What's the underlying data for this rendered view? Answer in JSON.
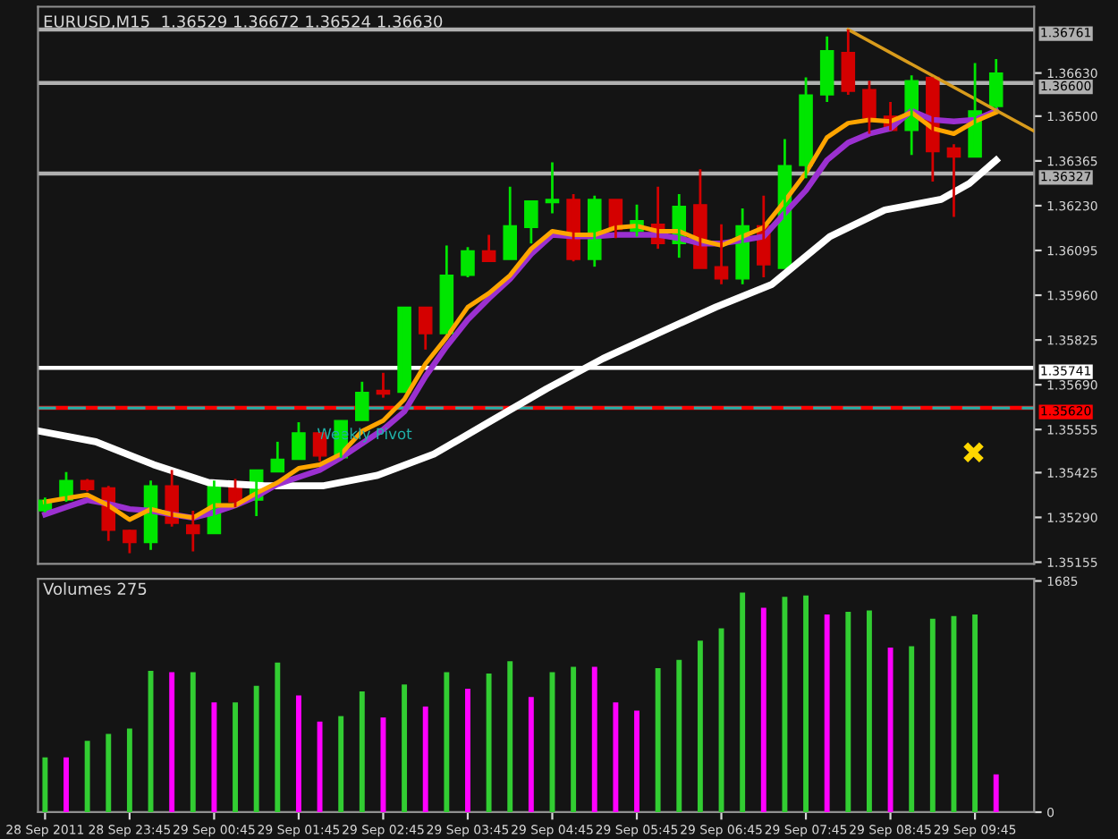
{
  "chart_data": [
    {
      "type": "candlestick",
      "title": "EURUSD,M15  1.36529 1.36672 1.36524 1.36630",
      "x": [
        "2011-09-28T22:45",
        "2011-09-28T23:00",
        "2011-09-28T23:15",
        "2011-09-28T23:30",
        "2011-09-28T23:45",
        "2011-09-29T00:00",
        "2011-09-29T00:15",
        "2011-09-29T00:30",
        "2011-09-29T00:45",
        "2011-09-29T01:00",
        "2011-09-29T01:15",
        "2011-09-29T01:30",
        "2011-09-29T01:45",
        "2011-09-29T02:00",
        "2011-09-29T02:15",
        "2011-09-29T02:30",
        "2011-09-29T02:45",
        "2011-09-29T03:00",
        "2011-09-29T03:15",
        "2011-09-29T03:30",
        "2011-09-29T03:45",
        "2011-09-29T04:00",
        "2011-09-29T04:15",
        "2011-09-29T04:30",
        "2011-09-29T04:45",
        "2011-09-29T05:00",
        "2011-09-29T05:15",
        "2011-09-29T05:30",
        "2011-09-29T05:45",
        "2011-09-29T06:00",
        "2011-09-29T06:15",
        "2011-09-29T06:30",
        "2011-09-29T06:45",
        "2011-09-29T07:00",
        "2011-09-29T07:15",
        "2011-09-29T07:30",
        "2011-09-29T07:45",
        "2011-09-29T08:00",
        "2011-09-29T08:15",
        "2011-09-29T08:30",
        "2011-09-29T08:45",
        "2011-09-29T09:00",
        "2011-09-29T09:15",
        "2011-09-29T09:30",
        "2011-09-29T09:45",
        "2011-09-29T10:00"
      ],
      "ohlc": [
        [
          1.3531,
          1.3535,
          1.35305,
          1.35342
        ],
        [
          1.35342,
          1.35427,
          1.35337,
          1.35401
        ],
        [
          1.35401,
          1.35406,
          1.35368,
          1.35374
        ],
        [
          1.35379,
          1.35385,
          1.35219,
          1.35251
        ],
        [
          1.35251,
          1.35253,
          1.35182,
          1.35214
        ],
        [
          1.35214,
          1.35401,
          1.35192,
          1.35385
        ],
        [
          1.35385,
          1.35433,
          1.35262,
          1.35272
        ],
        [
          1.35267,
          1.3531,
          1.35187,
          1.35241
        ],
        [
          1.35241,
          1.35401,
          1.35241,
          1.35385
        ],
        [
          1.3539,
          1.35406,
          1.35321,
          1.35337
        ],
        [
          1.35342,
          1.35433,
          1.35294,
          1.35433
        ],
        [
          1.35427,
          1.35518,
          1.35427,
          1.35465
        ],
        [
          1.35465,
          1.35577,
          1.35465,
          1.35545
        ],
        [
          1.35545,
          1.35545,
          1.35459,
          1.35475
        ],
        [
          1.3547,
          1.35582,
          1.3547,
          1.35582
        ],
        [
          1.35582,
          1.35699,
          1.35582,
          1.35667
        ],
        [
          1.35673,
          1.35726,
          1.35651,
          1.35662
        ],
        [
          1.35667,
          1.35924,
          1.35667,
          1.35924
        ],
        [
          1.35924,
          1.35924,
          1.35796,
          1.35844
        ],
        [
          1.35844,
          1.3611,
          1.35844,
          1.3602
        ],
        [
          1.3602,
          1.36105,
          1.36014,
          1.36094
        ],
        [
          1.36094,
          1.36142,
          1.36062,
          1.36062
        ],
        [
          1.36068,
          1.36287,
          1.36068,
          1.36169
        ],
        [
          1.36164,
          1.36244,
          1.36116,
          1.36244
        ],
        [
          1.36239,
          1.36361,
          1.36207,
          1.36249
        ],
        [
          1.36249,
          1.36265,
          1.36062,
          1.36068
        ],
        [
          1.36068,
          1.3626,
          1.36046,
          1.36249
        ],
        [
          1.36249,
          1.36249,
          1.36132,
          1.36158
        ],
        [
          1.36153,
          1.36233,
          1.36137,
          1.36185
        ],
        [
          1.36174,
          1.36287,
          1.361,
          1.36116
        ],
        [
          1.36116,
          1.36265,
          1.36073,
          1.36228
        ],
        [
          1.36233,
          1.3634,
          1.36041,
          1.36041
        ],
        [
          1.36046,
          1.36174,
          1.35993,
          1.36009
        ],
        [
          1.36009,
          1.36222,
          1.35993,
          1.36169
        ],
        [
          1.36169,
          1.3626,
          1.36014,
          1.36052
        ],
        [
          1.36041,
          1.36431,
          1.36041,
          1.36351
        ],
        [
          1.36351,
          1.36617,
          1.36313,
          1.36564
        ],
        [
          1.36564,
          1.3674,
          1.36543,
          1.36697
        ],
        [
          1.36692,
          1.36761,
          1.36564,
          1.36575
        ],
        [
          1.3658,
          1.36607,
          1.36447,
          1.36495
        ],
        [
          1.365,
          1.36543,
          1.36457,
          1.36457
        ],
        [
          1.36457,
          1.36623,
          1.36383,
          1.36607
        ],
        [
          1.36617,
          1.36617,
          1.36303,
          1.36393
        ],
        [
          1.36404,
          1.36415,
          1.36196,
          1.36377
        ],
        [
          1.36377,
          1.3666,
          1.36377,
          1.36516
        ],
        [
          1.36529,
          1.36672,
          1.36524,
          1.3663
        ]
      ],
      "colors": [
        "#00e600",
        "#00e600",
        "#d40000",
        "#d40000",
        "#d40000",
        "#00e600",
        "#d40000",
        "#d40000",
        "#00e600",
        "#d40000",
        "#00e600",
        "#00e600",
        "#00e600",
        "#d40000",
        "#00e600",
        "#00e600",
        "#d40000",
        "#00e600",
        "#d40000",
        "#00e600",
        "#00e600",
        "#d40000",
        "#00e600",
        "#00e600",
        "#00e600",
        "#d40000",
        "#00e600",
        "#d40000",
        "#00e600",
        "#d40000",
        "#00e600",
        "#d40000",
        "#d40000",
        "#00e600",
        "#d40000",
        "#00e600",
        "#00e600",
        "#00e600",
        "#d40000",
        "#d40000",
        "#d40000",
        "#00e600",
        "#d40000",
        "#d40000",
        "#00e600",
        "#00e600"
      ],
      "series": [
        {
          "type": "line",
          "color": "#ffffff",
          "x": [
            "2011-09-28T22:41",
            "2011-09-28T23:21",
            "2011-09-29T00:02",
            "2011-09-29T00:41",
            "2011-09-29T01:21",
            "2011-09-29T02:02",
            "2011-09-29T02:41",
            "2011-09-29T03:21",
            "2011-09-29T04:02",
            "2011-09-29T04:41",
            "2011-09-29T05:21",
            "2011-09-29T06:02",
            "2011-09-29T06:41",
            "2011-09-29T07:21",
            "2011-09-29T08:02",
            "2011-09-29T08:41",
            "2011-09-29T09:21",
            "2011-09-29T09:41",
            "2011-09-29T10:00"
          ],
          "values": [
            1.3555,
            1.35518,
            1.35449,
            1.35395,
            1.35385,
            1.35385,
            1.35417,
            1.35481,
            1.35582,
            1.35678,
            1.35769,
            1.35849,
            1.35924,
            1.35993,
            1.36137,
            1.36217,
            1.36249,
            1.36297,
            1.36367
          ]
        },
        {
          "type": "line",
          "color": "#9b30d0",
          "values": [
            1.35299,
            1.35321,
            1.35342,
            1.35331,
            1.35315,
            1.3531,
            1.35299,
            1.35289,
            1.35305,
            1.35326,
            1.35353,
            1.3539,
            1.35411,
            1.35433,
            1.3547,
            1.35513,
            1.35555,
            1.35609,
            1.35715,
            1.35806,
            1.35886,
            1.3595,
            1.36009,
            1.36084,
            1.36142,
            1.36137,
            1.36137,
            1.36142,
            1.36142,
            1.36142,
            1.36132,
            1.36116,
            1.36116,
            1.36126,
            1.36137,
            1.36207,
            1.36276,
            1.36367,
            1.3642,
            1.36447,
            1.36463,
            1.36516,
            1.36489,
            1.36484,
            1.36489,
            1.36516
          ]
        },
        {
          "type": "line",
          "color": "#ffa500",
          "values": [
            1.35337,
            1.35348,
            1.35358,
            1.35326,
            1.35283,
            1.35315,
            1.35299,
            1.35289,
            1.35326,
            1.35326,
            1.35363,
            1.35395,
            1.35438,
            1.35449,
            1.35481,
            1.3555,
            1.35582,
            1.35646,
            1.35753,
            1.35833,
            1.35924,
            1.35966,
            1.3602,
            1.361,
            1.36153,
            1.36142,
            1.36142,
            1.36164,
            1.36169,
            1.36153,
            1.36153,
            1.36126,
            1.3611,
            1.36137,
            1.36164,
            1.36244,
            1.36329,
            1.36436,
            1.36479,
            1.36489,
            1.36484,
            1.36511,
            1.36463,
            1.36447,
            1.36484,
            1.36511
          ]
        },
        {
          "type": "line",
          "color": "#d89b1c",
          "x": [
            "2011-09-29T08:15",
            "2011-09-29T10:27"
          ],
          "values": [
            1.36761,
            1.36455
          ]
        },
        {
          "type": "scatter",
          "color": "#ffd700",
          "marker": "cross",
          "x": [
            "2011-09-29T09:44"
          ],
          "values": [
            1.35486
          ]
        }
      ],
      "ref_lines": [
        {
          "axis": "y",
          "value": 1.36761,
          "label": "1.36761",
          "color": "#b0b0b0",
          "line_style": "solid"
        },
        {
          "axis": "y",
          "value": 1.366,
          "label": "1.36600",
          "color": "#b0b0b0",
          "line_style": "solid"
        },
        {
          "axis": "y",
          "value": 1.36327,
          "label": "1.36327",
          "color": "#b0b0b0",
          "line_style": "solid"
        },
        {
          "axis": "y",
          "value": 1.35741,
          "label": "1.35741",
          "color": "#ffffff",
          "line_style": "solid"
        },
        {
          "axis": "y",
          "value": 1.3562,
          "label": "1.35620",
          "color": "#ff0000",
          "line_style": "solid"
        },
        {
          "axis": "y",
          "value": 1.3562,
          "label": "Weekly Pivot",
          "color": "#20b2aa",
          "line_style": "dashed"
        }
      ],
      "xlim": [
        "2011-09-28T22:40",
        "2011-09-29T10:27"
      ],
      "xticks": [
        {
          "value": "2011-09-28T22:45",
          "label": null
        },
        {
          "value": "2011-09-28T23:45",
          "label": null
        },
        {
          "value": "2011-09-29T00:45",
          "label": null
        },
        {
          "value": "2011-09-29T01:45",
          "label": null
        },
        {
          "value": "2011-09-29T02:45",
          "label": null
        },
        {
          "value": "2011-09-29T03:45",
          "label": null
        },
        {
          "value": "2011-09-29T04:45",
          "label": null
        },
        {
          "value": "2011-09-29T05:45",
          "label": null
        },
        {
          "value": "2011-09-29T06:45",
          "label": null
        },
        {
          "value": "2011-09-29T07:45",
          "label": null
        },
        {
          "value": "2011-09-29T08:45",
          "label": null
        },
        {
          "value": "2011-09-29T09:45",
          "label": null
        }
      ],
      "ylim": [
        1.3515,
        1.3683
      ],
      "yticks": [
        {
          "value": 1.35155,
          "label": "1.35155"
        },
        {
          "value": 1.3529,
          "label": "1.35290"
        },
        {
          "value": 1.35425,
          "label": "1.35425"
        },
        {
          "value": 1.35555,
          "label": "1.35555"
        },
        {
          "value": 1.3569,
          "label": "1.35690"
        },
        {
          "value": 1.35825,
          "label": "1.35825"
        },
        {
          "value": 1.3596,
          "label": "1.35960"
        },
        {
          "value": 1.36095,
          "label": "1.36095"
        },
        {
          "value": 1.3623,
          "label": "1.36230"
        },
        {
          "value": 1.36365,
          "label": "1.36365"
        },
        {
          "value": 1.365,
          "label": "1.36500"
        },
        {
          "value": 1.3663,
          "label": "1.36630"
        }
      ],
      "tick_labels": "y",
      "grid": false,
      "legend": false
    },
    {
      "type": "bar",
      "title": "Volumes 275",
      "x": [
        "2011-09-28T22:45",
        "2011-09-28T23:00",
        "2011-09-28T23:15",
        "2011-09-28T23:30",
        "2011-09-28T23:45",
        "2011-09-29T00:00",
        "2011-09-29T00:15",
        "2011-09-29T00:30",
        "2011-09-29T00:45",
        "2011-09-29T01:00",
        "2011-09-29T01:15",
        "2011-09-29T01:30",
        "2011-09-29T01:45",
        "2011-09-29T02:00",
        "2011-09-29T02:15",
        "2011-09-29T02:30",
        "2011-09-29T02:45",
        "2011-09-29T03:00",
        "2011-09-29T03:15",
        "2011-09-29T03:30",
        "2011-09-29T03:45",
        "2011-09-29T04:00",
        "2011-09-29T04:15",
        "2011-09-29T04:30",
        "2011-09-29T04:45",
        "2011-09-29T05:00",
        "2011-09-29T05:15",
        "2011-09-29T05:30",
        "2011-09-29T05:45",
        "2011-09-29T06:00",
        "2011-09-29T06:15",
        "2011-09-29T06:30",
        "2011-09-29T06:45",
        "2011-09-29T07:00",
        "2011-09-29T07:15",
        "2011-09-29T07:30",
        "2011-09-29T07:45",
        "2011-09-29T08:00",
        "2011-09-29T08:15",
        "2011-09-29T08:30",
        "2011-09-29T08:45",
        "2011-09-29T09:00",
        "2011-09-29T09:15",
        "2011-09-29T09:30",
        "2011-09-29T09:45",
        "2011-09-29T10:00"
      ],
      "values": [
        400,
        400,
        520,
        570,
        610,
        1030,
        1020,
        1020,
        800,
        800,
        920,
        1090,
        850,
        660,
        700,
        880,
        690,
        930,
        770,
        1020,
        900,
        1010,
        1100,
        840,
        1020,
        1060,
        1060,
        800,
        740,
        1050,
        1110,
        1250,
        1340,
        1600,
        1490,
        1570,
        1580,
        1440,
        1460,
        1470,
        1200,
        1210,
        1410,
        1430,
        1440,
        275
      ],
      "colors": [
        "#32cd32",
        "#ff00ff",
        "#32cd32",
        "#32cd32",
        "#32cd32",
        "#32cd32",
        "#ff00ff",
        "#32cd32",
        "#ff00ff",
        "#32cd32",
        "#32cd32",
        "#32cd32",
        "#ff00ff",
        "#ff00ff",
        "#32cd32",
        "#32cd32",
        "#ff00ff",
        "#32cd32",
        "#ff00ff",
        "#32cd32",
        "#ff00ff",
        "#32cd32",
        "#32cd32",
        "#ff00ff",
        "#32cd32",
        "#32cd32",
        "#ff00ff",
        "#ff00ff",
        "#ff00ff",
        "#32cd32",
        "#32cd32",
        "#32cd32",
        "#32cd32",
        "#32cd32",
        "#ff00ff",
        "#32cd32",
        "#32cd32",
        "#ff00ff",
        "#32cd32",
        "#32cd32",
        "#ff00ff",
        "#32cd32",
        "#32cd32",
        "#32cd32",
        "#32cd32",
        "#ff00ff"
      ],
      "xlim": [
        "2011-09-28T22:40",
        "2011-09-29T10:27"
      ],
      "xticks": [
        {
          "value": "2011-09-28T22:45",
          "label": "28 Sep 2011"
        },
        {
          "value": "2011-09-28T23:45",
          "label": "28 Sep 23:45"
        },
        {
          "value": "2011-09-29T00:45",
          "label": "29 Sep 00:45"
        },
        {
          "value": "2011-09-29T01:45",
          "label": "29 Sep 01:45"
        },
        {
          "value": "2011-09-29T02:45",
          "label": "29 Sep 02:45"
        },
        {
          "value": "2011-09-29T03:45",
          "label": "29 Sep 03:45"
        },
        {
          "value": "2011-09-29T04:45",
          "label": "29 Sep 04:45"
        },
        {
          "value": "2011-09-29T05:45",
          "label": "29 Sep 05:45"
        },
        {
          "value": "2011-09-29T06:45",
          "label": "29 Sep 06:45"
        },
        {
          "value": "2011-09-29T07:45",
          "label": "29 Sep 07:45"
        },
        {
          "value": "2011-09-29T08:45",
          "label": "29 Sep 08:45"
        },
        {
          "value": "2011-09-29T09:45",
          "label": "29 Sep 09:45"
        }
      ],
      "ylim": [
        0,
        1700
      ],
      "yticks": [
        0,
        1685
      ],
      "grid": false,
      "legend": false
    }
  ]
}
